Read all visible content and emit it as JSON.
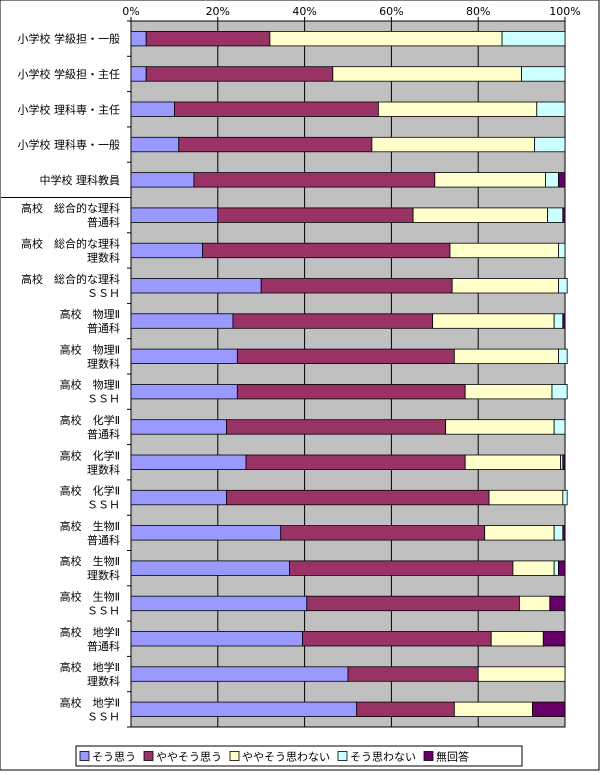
{
  "colors": {
    "plot_bg": "#C0C0C0",
    "grid": "#000000",
    "separator": "#000000"
  },
  "chart_data": {
    "type": "bar",
    "orientation": "horizontal",
    "stacking": "percent",
    "title": "",
    "xlabel": "",
    "ylabel": "",
    "xlim": [
      0,
      100
    ],
    "x_ticks": [
      "0%",
      "20%",
      "40%",
      "60%",
      "80%",
      "100%"
    ],
    "grid": true,
    "legend_position": "bottom",
    "categories": [
      [
        "小学校 学級担・一般"
      ],
      [
        "小学校 学級担・主任"
      ],
      [
        "小学校 理科専・主任"
      ],
      [
        "小学校 理科専・一般"
      ],
      [
        "中学校 理科教員"
      ],
      [
        "高校　総合的な理科",
        "普通科"
      ],
      [
        "高校　総合的な理科",
        "理数科"
      ],
      [
        "高校　総合的な理科",
        "ＳＳＨ"
      ],
      [
        "高校　物理Ⅱ",
        "普通科"
      ],
      [
        "高校　物理Ⅱ",
        "理数科"
      ],
      [
        "高校　物理Ⅱ",
        "ＳＳＨ"
      ],
      [
        "高校　化学Ⅱ",
        "普通科"
      ],
      [
        "高校　化学Ⅱ",
        "理数科"
      ],
      [
        "高校　化学Ⅱ",
        "ＳＳＨ"
      ],
      [
        "高校　生物Ⅱ",
        "普通科"
      ],
      [
        "高校　生物Ⅱ",
        "理数科"
      ],
      [
        "高校　生物Ⅱ",
        "ＳＳＨ"
      ],
      [
        "高校　地学Ⅱ",
        "普通科"
      ],
      [
        "高校　地学Ⅱ",
        "理数科"
      ],
      [
        "高校　地学Ⅱ",
        "ＳＳＨ"
      ]
    ],
    "series": [
      {
        "name": "そう思う",
        "color": "#9999FF",
        "values": [
          3.5,
          3.5,
          10,
          11,
          14.5,
          20,
          16.5,
          30,
          23.5,
          24.5,
          24.5,
          22,
          26.5,
          22,
          34.5,
          36.5,
          40.5,
          39.5,
          50,
          52
        ]
      },
      {
        "name": "ややそう思う",
        "color": "#993366",
        "values": [
          28.5,
          43,
          47,
          44.5,
          55.5,
          45,
          57,
          44,
          46,
          50,
          52.5,
          50.5,
          50.5,
          60.5,
          47,
          51.5,
          49,
          43.5,
          30,
          22.5
        ]
      },
      {
        "name": "ややそう思わない",
        "color": "#FFFFCC",
        "values": [
          53.5,
          43.5,
          36.5,
          37.5,
          25.5,
          31,
          25,
          24.5,
          28,
          24,
          20,
          25,
          22,
          17,
          16,
          9.5,
          7,
          12,
          20,
          18
        ]
      },
      {
        "name": "そう思わない",
        "color": "#CCFFFF",
        "values": [
          14.5,
          10,
          6.5,
          7,
          3,
          3.5,
          1.5,
          2,
          2,
          2,
          3.5,
          2.5,
          0.5,
          1,
          2,
          1,
          0,
          0,
          0,
          0
        ]
      },
      {
        "name": "無回答",
        "color": "#660066",
        "values": [
          0,
          0,
          0,
          0,
          1.5,
          0.5,
          0,
          0,
          0.5,
          0,
          0,
          0,
          0.5,
          0,
          0.5,
          1.5,
          3.5,
          5,
          0,
          7.5
        ]
      }
    ]
  }
}
